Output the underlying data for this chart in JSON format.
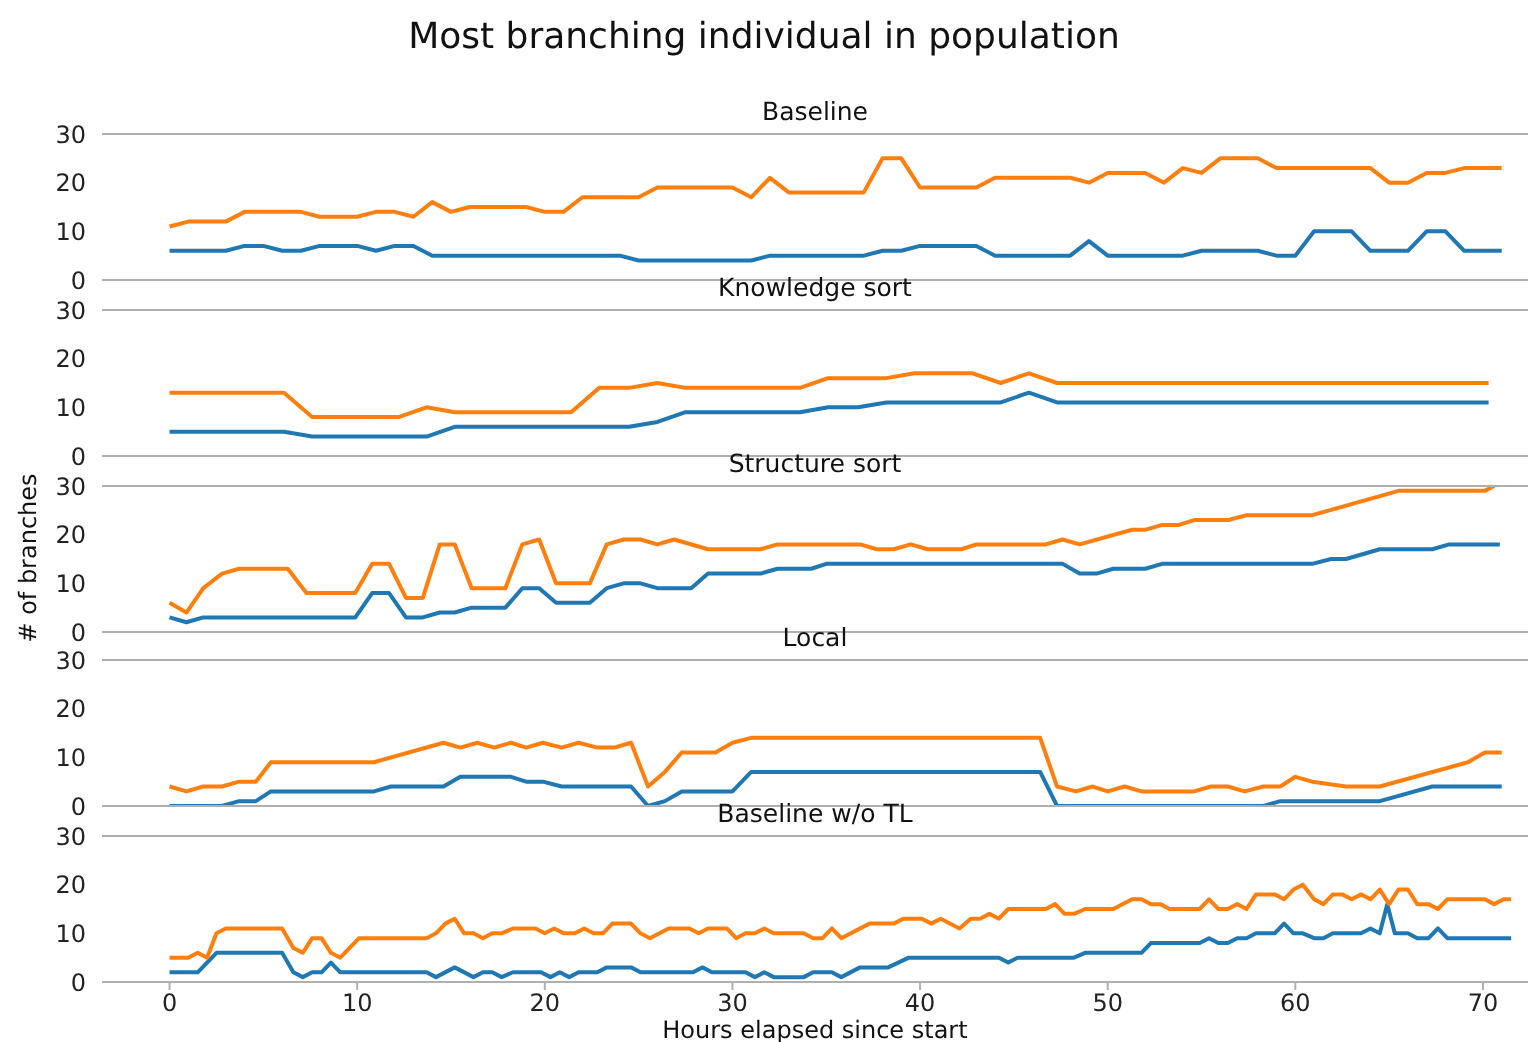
{
  "chart_data": [
    {
      "type": "line",
      "title": "Most branching individual in population",
      "subtitle": "Baseline",
      "xlim": [
        -3.6,
        72.4
      ],
      "xticks": [
        0,
        10,
        20,
        30,
        40,
        50,
        60,
        70
      ],
      "ylim": [
        0,
        30
      ],
      "yticks": [
        0,
        10,
        20,
        30
      ],
      "tick_labels": "y",
      "marker": "none",
      "line_style": "solid",
      "series": [
        {
          "color": "#1f77b4",
          "x": [
            0,
            1,
            2,
            3,
            4,
            5,
            6,
            7,
            8,
            9,
            10,
            11,
            12,
            13,
            14,
            15,
            16,
            17,
            18,
            19,
            20,
            21,
            22,
            23,
            24,
            25,
            26,
            27,
            28,
            29,
            30,
            31,
            32,
            33,
            34,
            35,
            36,
            37,
            38,
            39,
            40,
            41,
            42,
            43,
            44,
            45,
            46,
            47,
            48,
            49,
            50,
            51,
            52,
            53,
            54,
            55,
            56,
            57,
            58,
            59,
            60,
            61,
            62,
            63,
            64,
            65,
            66,
            67,
            68,
            69,
            70,
            71
          ],
          "values": [
            6,
            6,
            6,
            6,
            7,
            7,
            6,
            6,
            7,
            7,
            7,
            6,
            7,
            7,
            5,
            5,
            5,
            5,
            5,
            5,
            5,
            5,
            5,
            5,
            5,
            4,
            4,
            4,
            4,
            4,
            4,
            4,
            5,
            5,
            5,
            5,
            5,
            5,
            6,
            6,
            7,
            7,
            7,
            7,
            5,
            5,
            5,
            5,
            5,
            8,
            5,
            5,
            5,
            5,
            5,
            6,
            6,
            6,
            6,
            5,
            5,
            10,
            10,
            10,
            6,
            6,
            6,
            10,
            10,
            6,
            6,
            6
          ]
        },
        {
          "color": "#ff7f0e",
          "x": [
            0,
            1,
            2,
            3,
            4,
            5,
            6,
            7,
            8,
            9,
            10,
            11,
            12,
            13,
            14,
            15,
            16,
            17,
            18,
            19,
            20,
            21,
            22,
            23,
            24,
            25,
            26,
            27,
            28,
            29,
            30,
            31,
            32,
            33,
            34,
            35,
            36,
            37,
            38,
            39,
            40,
            41,
            42,
            43,
            44,
            45,
            46,
            47,
            48,
            49,
            50,
            51,
            52,
            53,
            54,
            55,
            56,
            57,
            58,
            59,
            60,
            61,
            62,
            63,
            64,
            65,
            66,
            67,
            68,
            69,
            70,
            71
          ],
          "values": [
            11,
            12,
            12,
            12,
            14,
            14,
            14,
            14,
            13,
            13,
            13,
            14,
            14,
            13,
            16,
            14,
            15,
            15,
            15,
            15,
            14,
            14,
            17,
            17,
            17,
            17,
            19,
            19,
            19,
            19,
            19,
            17,
            21,
            18,
            18,
            18,
            18,
            18,
            25,
            25,
            19,
            19,
            19,
            19,
            21,
            21,
            21,
            21,
            21,
            20,
            22,
            22,
            22,
            20,
            23,
            22,
            25,
            25,
            25,
            23,
            23,
            23,
            23,
            23,
            23,
            20,
            20,
            22,
            22,
            23,
            23,
            23
          ]
        }
      ]
    },
    {
      "type": "line",
      "title": "Knowledge sort",
      "xlim": [
        -3.6,
        72.4
      ],
      "xticks": [
        0,
        10,
        20,
        30,
        40,
        50,
        60,
        70
      ],
      "ylim": [
        0,
        30
      ],
      "yticks": [
        0,
        10,
        20,
        30
      ],
      "tick_labels": "y",
      "marker": "none",
      "line_style": "solid",
      "series": [
        {
          "color": "#1f77b4",
          "x": [
            0,
            6.1,
            7.6,
            13.7,
            15.2,
            24.5,
            26.0,
            27.5,
            33.6,
            35.1,
            36.7,
            38.2,
            44.3,
            45.8,
            47.3,
            70.3
          ],
          "values": [
            5,
            5,
            4,
            4,
            6,
            6,
            7,
            9,
            9,
            10,
            10,
            11,
            11,
            13,
            11,
            11
          ]
        },
        {
          "color": "#ff7f0e",
          "x": [
            0,
            6.1,
            7.6,
            12.2,
            13.7,
            15.2,
            21.4,
            22.9,
            24.5,
            26.0,
            27.5,
            33.6,
            35.1,
            38.2,
            39.7,
            42.8,
            44.3,
            45.8,
            47.3,
            70.3
          ],
          "values": [
            13,
            13,
            8,
            8,
            10,
            9,
            9,
            14,
            14,
            15,
            14,
            14,
            16,
            16,
            17,
            17,
            15,
            17,
            15,
            15
          ]
        }
      ]
    },
    {
      "type": "line",
      "title": "Structure sort",
      "ylabel": "# of branches",
      "xlim": [
        -3.6,
        72.4
      ],
      "xticks": [
        0,
        10,
        20,
        30,
        40,
        50,
        60,
        70
      ],
      "ylim": [
        0,
        30
      ],
      "yticks": [
        0,
        10,
        20,
        30
      ],
      "tick_labels": "y",
      "marker": "none",
      "line_style": "solid",
      "series": [
        {
          "color": "#1f77b4",
          "x": [
            0,
            0.9,
            1.8,
            9.9,
            10.8,
            11.7,
            12.6,
            13.5,
            14.4,
            15.2,
            16.1,
            17.9,
            18.8,
            19.7,
            20.6,
            22.4,
            23.3,
            24.2,
            25.1,
            26.0,
            27.8,
            28.7,
            31.5,
            32.4,
            34.2,
            35.0,
            47.6,
            48.5,
            49.4,
            50.3,
            52.0,
            52.9,
            60.9,
            61.9,
            62.7,
            64.5,
            67.3,
            68.2,
            70.9
          ],
          "values": [
            3,
            2,
            3,
            3,
            8,
            8,
            3,
            3,
            4,
            4,
            5,
            5,
            9,
            9,
            6,
            6,
            9,
            10,
            10,
            9,
            9,
            12,
            12,
            13,
            13,
            14,
            14,
            12,
            12,
            13,
            13,
            14,
            14,
            15,
            15,
            17,
            17,
            18,
            18
          ]
        },
        {
          "color": "#ff7f0e",
          "x": [
            0,
            0.9,
            1.8,
            2.8,
            3.7,
            6.3,
            7.3,
            9.9,
            10.8,
            11.7,
            12.6,
            13.5,
            14.4,
            15.2,
            16.1,
            17.9,
            18.8,
            19.7,
            20.6,
            22.4,
            23.3,
            24.2,
            25.1,
            26.0,
            26.9,
            28.7,
            31.5,
            32.4,
            36.8,
            37.7,
            38.6,
            39.5,
            40.4,
            42.2,
            43.0,
            46.7,
            47.6,
            48.5,
            51.3,
            52.0,
            52.9,
            53.8,
            54.6,
            56.4,
            57.4,
            60.9,
            65.5,
            70.1,
            70.6
          ],
          "values": [
            6,
            4,
            9,
            12,
            13,
            13,
            8,
            8,
            14,
            14,
            7,
            7,
            18,
            18,
            9,
            9,
            18,
            19,
            10,
            10,
            18,
            19,
            19,
            18,
            19,
            17,
            17,
            18,
            18,
            17,
            17,
            18,
            17,
            17,
            18,
            18,
            19,
            18,
            21,
            21,
            22,
            22,
            23,
            23,
            24,
            24,
            29,
            29,
            30
          ]
        }
      ]
    },
    {
      "type": "line",
      "title": "Local",
      "xlim": [
        -3.6,
        72.4
      ],
      "xticks": [
        0,
        10,
        20,
        30,
        40,
        50,
        60,
        70
      ],
      "ylim": [
        0,
        30
      ],
      "yticks": [
        0,
        10,
        20,
        30
      ],
      "tick_labels": "y",
      "marker": "none",
      "line_style": "solid",
      "series": [
        {
          "color": "#1f77b4",
          "x": [
            0,
            2.8,
            3.7,
            4.6,
            5.4,
            10.9,
            11.8,
            14.6,
            15.5,
            18.2,
            19.0,
            19.9,
            20.9,
            24.6,
            25.5,
            26.4,
            27.3,
            30.0,
            31.0,
            46.4,
            47.3,
            58.3,
            59.2,
            64.5,
            67.3,
            71.0
          ],
          "values": [
            0,
            0,
            1,
            1,
            3,
            3,
            4,
            4,
            6,
            6,
            5,
            5,
            4,
            4,
            0,
            1,
            3,
            3,
            7,
            7,
            0,
            0,
            1,
            1,
            4,
            4
          ]
        },
        {
          "color": "#ff7f0e",
          "x": [
            0,
            0.9,
            1.8,
            2.8,
            3.7,
            4.6,
            5.4,
            10.9,
            14.6,
            15.5,
            16.4,
            17.3,
            18.2,
            19.0,
            19.9,
            20.9,
            21.8,
            22.8,
            23.7,
            24.6,
            25.5,
            26.4,
            27.3,
            29.1,
            30.0,
            31.0,
            46.4,
            47.3,
            48.3,
            49.2,
            50.0,
            50.9,
            51.8,
            54.6,
            55.5,
            56.4,
            57.3,
            58.3,
            59.2,
            60.0,
            60.9,
            62.7,
            64.5,
            69.2,
            70.1,
            71.0
          ],
          "values": [
            4,
            3,
            4,
            4,
            5,
            5,
            9,
            9,
            13,
            12,
            13,
            12,
            13,
            12,
            13,
            12,
            13,
            12,
            12,
            13,
            4,
            7,
            11,
            11,
            13,
            14,
            14,
            4,
            3,
            4,
            3,
            4,
            3,
            3,
            4,
            4,
            3,
            4,
            4,
            6,
            5,
            4,
            4,
            9,
            11,
            11
          ]
        }
      ]
    },
    {
      "type": "line",
      "title": "Baseline w/o TL",
      "xlabel": "Hours elapsed since start",
      "xlim": [
        -3.6,
        72.4
      ],
      "xticks": [
        0,
        10,
        20,
        30,
        40,
        50,
        60,
        70
      ],
      "ylim": [
        0,
        30
      ],
      "yticks": [
        0,
        10,
        20,
        30
      ],
      "marker": "none",
      "line_style": "solid",
      "series": [
        {
          "color": "#1f77b4",
          "x": [
            0,
            1.5,
            2.5,
            6.0,
            6.6,
            7.1,
            7.6,
            8.1,
            8.6,
            9.1,
            13.7,
            14.2,
            15.2,
            16.2,
            16.7,
            17.2,
            17.7,
            18.3,
            19.8,
            20.3,
            20.8,
            21.3,
            21.8,
            22.8,
            23.3,
            24.6,
            25.1,
            27.9,
            28.4,
            28.9,
            30.7,
            31.2,
            31.7,
            32.2,
            33.8,
            34.3,
            35.3,
            35.8,
            36.8,
            38.3,
            39.4,
            44.2,
            44.7,
            45.2,
            48.2,
            48.8,
            51.8,
            52.3,
            54.9,
            55.4,
            55.9,
            56.4,
            56.9,
            57.4,
            57.9,
            58.9,
            59.4,
            59.9,
            60.4,
            61.0,
            61.5,
            62.0,
            63.5,
            64.0,
            64.5,
            64.9,
            65.3,
            66.0,
            66.5,
            67.1,
            67.6,
            68.1,
            71.5
          ],
          "values": [
            2,
            2,
            6,
            6,
            2,
            1,
            2,
            2,
            4,
            2,
            2,
            1,
            3,
            1,
            2,
            2,
            1,
            2,
            2,
            1,
            2,
            1,
            2,
            2,
            3,
            3,
            2,
            2,
            3,
            2,
            2,
            1,
            2,
            1,
            1,
            2,
            2,
            1,
            3,
            3,
            5,
            5,
            4,
            5,
            5,
            6,
            6,
            8,
            8,
            9,
            8,
            8,
            9,
            9,
            10,
            10,
            12,
            10,
            10,
            9,
            9,
            10,
            10,
            11,
            10,
            16,
            10,
            10,
            9,
            9,
            11,
            9,
            9
          ]
        },
        {
          "color": "#ff7f0e",
          "x": [
            0,
            1.0,
            1.5,
            2.0,
            2.5,
            3.0,
            6.0,
            6.6,
            7.1,
            7.6,
            8.1,
            8.6,
            9.1,
            10.1,
            13.7,
            14.2,
            14.7,
            15.2,
            15.7,
            16.2,
            16.7,
            17.2,
            17.7,
            18.3,
            19.5,
            20.0,
            20.5,
            21.0,
            21.6,
            22.1,
            22.6,
            23.1,
            23.6,
            24.6,
            25.1,
            25.6,
            26.6,
            27.7,
            28.2,
            28.7,
            29.7,
            30.2,
            30.7,
            31.2,
            31.7,
            32.2,
            33.8,
            34.3,
            34.8,
            35.3,
            35.8,
            37.3,
            38.6,
            39.1,
            40.1,
            40.6,
            41.1,
            42.1,
            42.7,
            43.2,
            43.7,
            44.2,
            44.7,
            46.7,
            47.2,
            47.7,
            48.2,
            48.8,
            50.3,
            51.3,
            51.8,
            52.3,
            52.8,
            53.3,
            54.9,
            55.4,
            55.9,
            56.4,
            56.9,
            57.4,
            57.9,
            58.9,
            59.4,
            59.9,
            60.4,
            61.0,
            61.5,
            62.0,
            62.5,
            63.0,
            63.5,
            64.0,
            64.5,
            65.0,
            65.5,
            66.0,
            66.5,
            67.1,
            67.6,
            68.1,
            70.1,
            70.6,
            71.1,
            71.5
          ],
          "values": [
            5,
            5,
            6,
            5,
            10,
            11,
            11,
            7,
            6,
            9,
            9,
            6,
            5,
            9,
            9,
            10,
            12,
            13,
            10,
            10,
            9,
            10,
            10,
            11,
            11,
            10,
            11,
            10,
            10,
            11,
            10,
            10,
            12,
            12,
            10,
            9,
            11,
            11,
            10,
            11,
            11,
            9,
            10,
            10,
            11,
            10,
            10,
            9,
            9,
            11,
            9,
            12,
            12,
            13,
            13,
            12,
            13,
            11,
            13,
            13,
            14,
            13,
            15,
            15,
            16,
            14,
            14,
            15,
            15,
            17,
            17,
            16,
            16,
            15,
            15,
            17,
            15,
            15,
            16,
            15,
            18,
            18,
            17,
            19,
            20,
            17,
            16,
            18,
            18,
            17,
            18,
            17,
            19,
            16,
            19,
            19,
            16,
            16,
            15,
            17,
            17,
            16,
            17,
            17
          ]
        }
      ]
    }
  ]
}
